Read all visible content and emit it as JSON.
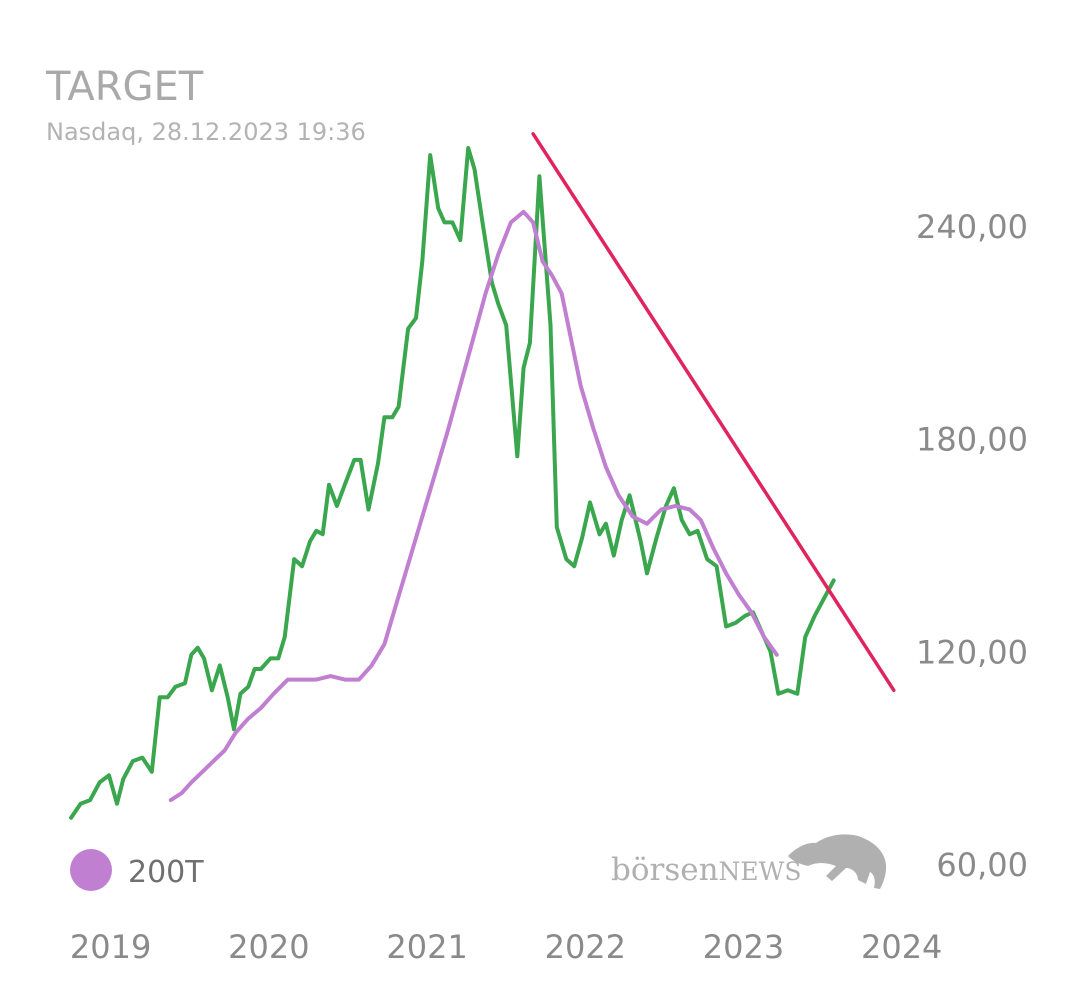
{
  "chart_data": {
    "type": "line",
    "title": "TARGET",
    "subtitle": "Nasdaq, 28.12.2023 19:36",
    "x_tick_labels": [
      "2019",
      "2020",
      "2021",
      "2022",
      "2023",
      "2024"
    ],
    "y_tick_labels": [
      "240,00",
      "180,00",
      "120,00",
      "60,00"
    ],
    "y_ticks": [
      240,
      180,
      120,
      60
    ],
    "xlim": [
      2018.93,
      2024.22
    ],
    "ylim": [
      47,
      284
    ],
    "grid": false,
    "legend": {
      "position": "bottom-left",
      "entries": [
        {
          "label": "200T",
          "color": "#c07fd0"
        }
      ]
    },
    "watermark": "börsenNEWS",
    "series": [
      {
        "color": "#3aa64d",
        "points": [
          [
            2019.0,
            73
          ],
          [
            2019.06,
            77
          ],
          [
            2019.12,
            78
          ],
          [
            2019.18,
            83
          ],
          [
            2019.24,
            85
          ],
          [
            2019.29,
            77
          ],
          [
            2019.33,
            84
          ],
          [
            2019.39,
            89
          ],
          [
            2019.45,
            90
          ],
          [
            2019.51,
            86
          ],
          [
            2019.56,
            107
          ],
          [
            2019.61,
            107
          ],
          [
            2019.66,
            110
          ],
          [
            2019.72,
            111
          ],
          [
            2019.76,
            119
          ],
          [
            2019.8,
            121
          ],
          [
            2019.84,
            118
          ],
          [
            2019.89,
            109
          ],
          [
            2019.94,
            116
          ],
          [
            2019.99,
            107
          ],
          [
            2020.03,
            98
          ],
          [
            2020.07,
            108
          ],
          [
            2020.12,
            110
          ],
          [
            2020.16,
            115
          ],
          [
            2020.2,
            115
          ],
          [
            2020.26,
            118
          ],
          [
            2020.31,
            118
          ],
          [
            2020.35,
            124
          ],
          [
            2020.41,
            146
          ],
          [
            2020.46,
            144
          ],
          [
            2020.51,
            151
          ],
          [
            2020.55,
            154
          ],
          [
            2020.59,
            153
          ],
          [
            2020.63,
            167
          ],
          [
            2020.68,
            161
          ],
          [
            2020.73,
            167
          ],
          [
            2020.79,
            174
          ],
          [
            2020.83,
            174
          ],
          [
            2020.88,
            160
          ],
          [
            2020.94,
            173
          ],
          [
            2020.98,
            186
          ],
          [
            2021.03,
            186
          ],
          [
            2021.07,
            189
          ],
          [
            2021.13,
            211
          ],
          [
            2021.18,
            214
          ],
          [
            2021.22,
            230
          ],
          [
            2021.27,
            260
          ],
          [
            2021.32,
            245
          ],
          [
            2021.36,
            241
          ],
          [
            2021.41,
            241
          ],
          [
            2021.46,
            236
          ],
          [
            2021.51,
            262
          ],
          [
            2021.55,
            256
          ],
          [
            2021.6,
            241
          ],
          [
            2021.66,
            224
          ],
          [
            2021.7,
            218
          ],
          [
            2021.75,
            212
          ],
          [
            2021.82,
            175
          ],
          [
            2021.86,
            200
          ],
          [
            2021.9,
            207
          ],
          [
            2021.96,
            254
          ],
          [
            2022.03,
            212
          ],
          [
            2022.07,
            155
          ],
          [
            2022.13,
            146
          ],
          [
            2022.18,
            144
          ],
          [
            2022.23,
            152
          ],
          [
            2022.28,
            162
          ],
          [
            2022.34,
            153
          ],
          [
            2022.38,
            156
          ],
          [
            2022.43,
            147
          ],
          [
            2022.48,
            157
          ],
          [
            2022.53,
            164
          ],
          [
            2022.6,
            151
          ],
          [
            2022.64,
            142
          ],
          [
            2022.7,
            152
          ],
          [
            2022.76,
            161
          ],
          [
            2022.81,
            166
          ],
          [
            2022.86,
            157
          ],
          [
            2022.91,
            153
          ],
          [
            2022.96,
            154
          ],
          [
            2023.02,
            146
          ],
          [
            2023.08,
            144
          ],
          [
            2023.14,
            127
          ],
          [
            2023.2,
            128
          ],
          [
            2023.26,
            130
          ],
          [
            2023.31,
            131
          ],
          [
            2023.36,
            126
          ],
          [
            2023.42,
            120
          ],
          [
            2023.47,
            108
          ],
          [
            2023.53,
            109
          ],
          [
            2023.59,
            108
          ],
          [
            2023.64,
            124
          ],
          [
            2023.7,
            130
          ],
          [
            2023.76,
            135
          ],
          [
            2023.82,
            140
          ]
        ]
      },
      {
        "name": "200T",
        "color": "#c07fd0",
        "points": [
          [
            2019.63,
            78
          ],
          [
            2019.7,
            80
          ],
          [
            2019.76,
            83
          ],
          [
            2019.83,
            86
          ],
          [
            2019.9,
            89
          ],
          [
            2019.97,
            92
          ],
          [
            2020.04,
            97
          ],
          [
            2020.12,
            101
          ],
          [
            2020.2,
            104
          ],
          [
            2020.28,
            108
          ],
          [
            2020.37,
            112
          ],
          [
            2020.46,
            112
          ],
          [
            2020.55,
            112
          ],
          [
            2020.64,
            113
          ],
          [
            2020.73,
            112
          ],
          [
            2020.82,
            112
          ],
          [
            2020.9,
            116
          ],
          [
            2020.98,
            122
          ],
          [
            2021.06,
            134
          ],
          [
            2021.14,
            146
          ],
          [
            2021.22,
            158
          ],
          [
            2021.3,
            170
          ],
          [
            2021.38,
            182
          ],
          [
            2021.46,
            195
          ],
          [
            2021.54,
            208
          ],
          [
            2021.62,
            221
          ],
          [
            2021.7,
            232
          ],
          [
            2021.78,
            241
          ],
          [
            2021.86,
            244
          ],
          [
            2021.92,
            241
          ],
          [
            2021.98,
            230
          ],
          [
            2022.04,
            226
          ],
          [
            2022.1,
            221
          ],
          [
            2022.16,
            208
          ],
          [
            2022.22,
            195
          ],
          [
            2022.3,
            183
          ],
          [
            2022.38,
            172
          ],
          [
            2022.46,
            164
          ],
          [
            2022.55,
            158
          ],
          [
            2022.64,
            156
          ],
          [
            2022.73,
            160
          ],
          [
            2022.82,
            161
          ],
          [
            2022.91,
            160
          ],
          [
            2022.98,
            157
          ],
          [
            2023.06,
            149
          ],
          [
            2023.14,
            142
          ],
          [
            2023.22,
            136
          ],
          [
            2023.3,
            131
          ],
          [
            2023.38,
            124
          ],
          [
            2023.46,
            119
          ]
        ]
      },
      {
        "color": "#e0245e",
        "points": [
          [
            2021.92,
            266
          ],
          [
            2024.2,
            109
          ]
        ]
      }
    ]
  }
}
